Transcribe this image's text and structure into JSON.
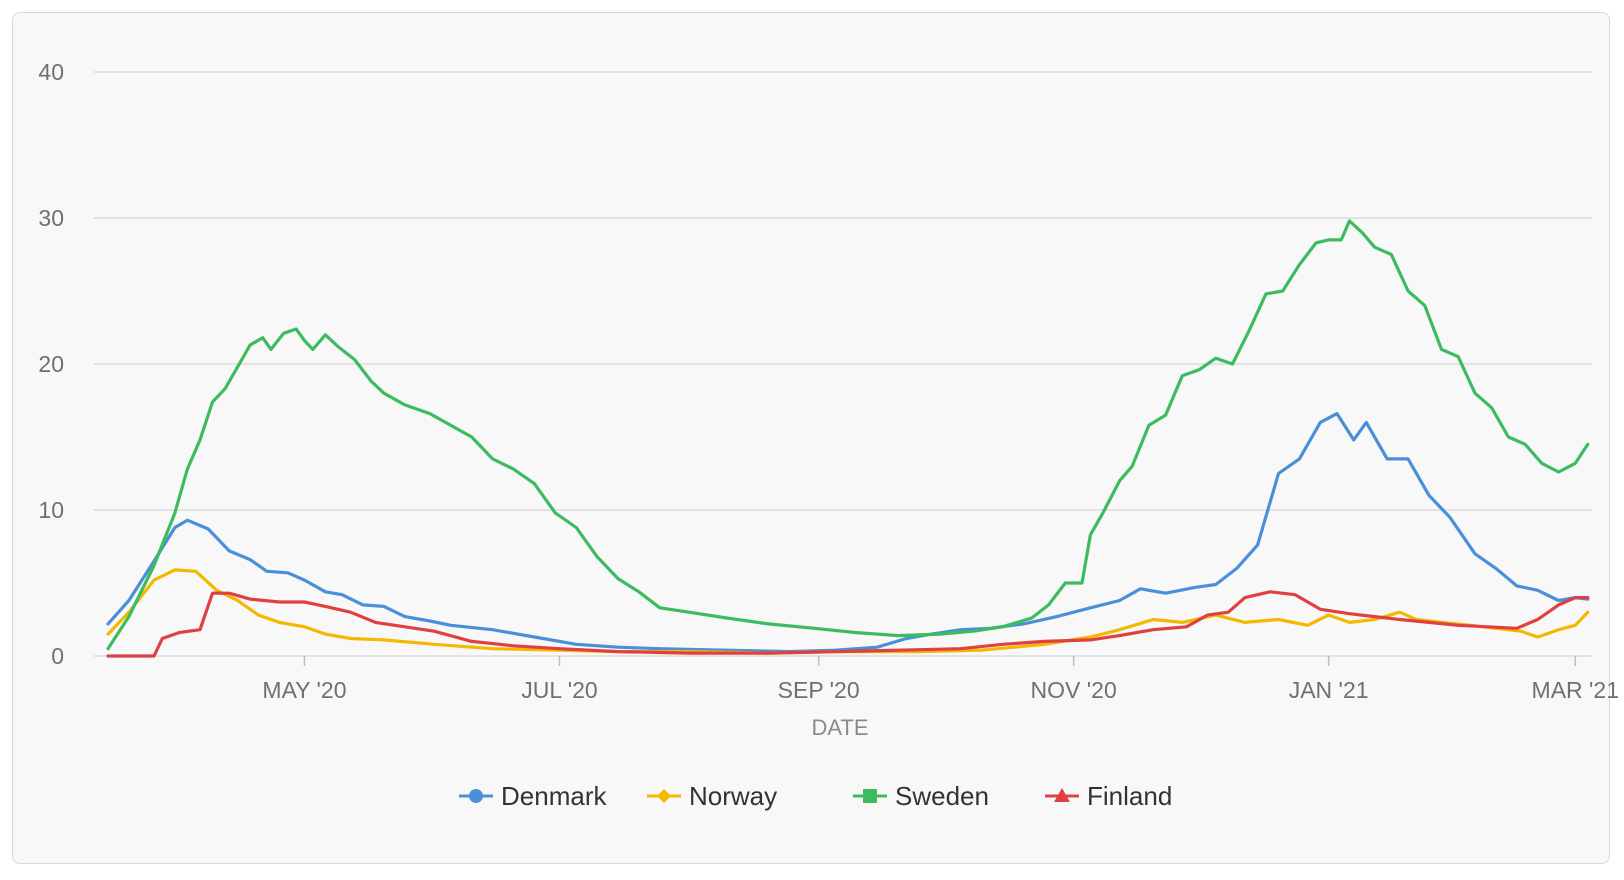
{
  "chart_data": {
    "type": "line",
    "title": "",
    "xlabel": "DATE",
    "ylabel": "",
    "ylim": [
      0,
      40
    ],
    "y_ticks": [
      0,
      10,
      20,
      30,
      40
    ],
    "x_range": [
      "2020-03-15",
      "2021-03-05"
    ],
    "x_ticks": [
      {
        "date": "2020-05-01",
        "label": "MAY '20"
      },
      {
        "date": "2020-07-01",
        "label": "JUL '20"
      },
      {
        "date": "2020-09-01",
        "label": "SEP '20"
      },
      {
        "date": "2020-11-01",
        "label": "NOV '20"
      },
      {
        "date": "2021-01-01",
        "label": "JAN '21"
      },
      {
        "date": "2021-03-01",
        "label": "MAR '21"
      }
    ],
    "grid": true,
    "legend_position": "bottom",
    "series": [
      {
        "name": "Denmark",
        "color": "#4a90d9",
        "marker": "circle",
        "points": [
          [
            "2020-03-15",
            2.2
          ],
          [
            "2020-03-20",
            3.8
          ],
          [
            "2020-03-26",
            6.5
          ],
          [
            "2020-03-31",
            8.8
          ],
          [
            "2020-04-03",
            9.3
          ],
          [
            "2020-04-08",
            8.7
          ],
          [
            "2020-04-13",
            7.2
          ],
          [
            "2020-04-18",
            6.6
          ],
          [
            "2020-04-22",
            5.8
          ],
          [
            "2020-04-27",
            5.7
          ],
          [
            "2020-05-01",
            5.2
          ],
          [
            "2020-05-06",
            4.4
          ],
          [
            "2020-05-10",
            4.2
          ],
          [
            "2020-05-15",
            3.5
          ],
          [
            "2020-05-20",
            3.4
          ],
          [
            "2020-05-25",
            2.7
          ],
          [
            "2020-05-31",
            2.4
          ],
          [
            "2020-06-05",
            2.1
          ],
          [
            "2020-06-15",
            1.8
          ],
          [
            "2020-06-25",
            1.3
          ],
          [
            "2020-07-05",
            0.8
          ],
          [
            "2020-07-15",
            0.6
          ],
          [
            "2020-07-25",
            0.5
          ],
          [
            "2020-08-10",
            0.4
          ],
          [
            "2020-08-25",
            0.3
          ],
          [
            "2020-09-05",
            0.4
          ],
          [
            "2020-09-15",
            0.6
          ],
          [
            "2020-09-22",
            1.2
          ],
          [
            "2020-09-28",
            1.5
          ],
          [
            "2020-10-05",
            1.8
          ],
          [
            "2020-10-12",
            1.9
          ],
          [
            "2020-10-20",
            2.2
          ],
          [
            "2020-10-28",
            2.7
          ],
          [
            "2020-11-05",
            3.3
          ],
          [
            "2020-11-12",
            3.8
          ],
          [
            "2020-11-17",
            4.6
          ],
          [
            "2020-11-23",
            4.3
          ],
          [
            "2020-11-30",
            4.7
          ],
          [
            "2020-12-05",
            4.9
          ],
          [
            "2020-12-10",
            6.0
          ],
          [
            "2020-12-15",
            7.6
          ],
          [
            "2020-12-20",
            12.5
          ],
          [
            "2020-12-25",
            13.5
          ],
          [
            "2020-12-30",
            16.0
          ],
          [
            "2021-01-03",
            16.6
          ],
          [
            "2021-01-07",
            14.8
          ],
          [
            "2021-01-10",
            16.0
          ],
          [
            "2021-01-15",
            13.5
          ],
          [
            "2021-01-20",
            13.5
          ],
          [
            "2021-01-25",
            11.0
          ],
          [
            "2021-01-30",
            9.5
          ],
          [
            "2021-02-05",
            7.0
          ],
          [
            "2021-02-10",
            6.0
          ],
          [
            "2021-02-15",
            4.8
          ],
          [
            "2021-02-20",
            4.5
          ],
          [
            "2021-02-25",
            3.8
          ],
          [
            "2021-03-01",
            4.0
          ],
          [
            "2021-03-04",
            3.9
          ]
        ]
      },
      {
        "name": "Norway",
        "color": "#f5b800",
        "marker": "diamond",
        "points": [
          [
            "2020-03-15",
            1.5
          ],
          [
            "2020-03-20",
            3.0
          ],
          [
            "2020-03-26",
            5.2
          ],
          [
            "2020-03-31",
            5.9
          ],
          [
            "2020-04-05",
            5.8
          ],
          [
            "2020-04-10",
            4.5
          ],
          [
            "2020-04-15",
            3.8
          ],
          [
            "2020-04-20",
            2.8
          ],
          [
            "2020-04-25",
            2.3
          ],
          [
            "2020-05-01",
            2.0
          ],
          [
            "2020-05-06",
            1.5
          ],
          [
            "2020-05-12",
            1.2
          ],
          [
            "2020-05-20",
            1.1
          ],
          [
            "2020-06-01",
            0.8
          ],
          [
            "2020-06-15",
            0.5
          ],
          [
            "2020-07-01",
            0.4
          ],
          [
            "2020-07-15",
            0.3
          ],
          [
            "2020-08-01",
            0.3
          ],
          [
            "2020-08-20",
            0.2
          ],
          [
            "2020-09-05",
            0.3
          ],
          [
            "2020-09-25",
            0.3
          ],
          [
            "2020-10-10",
            0.4
          ],
          [
            "2020-10-25",
            0.8
          ],
          [
            "2020-11-05",
            1.3
          ],
          [
            "2020-11-12",
            1.8
          ],
          [
            "2020-11-20",
            2.5
          ],
          [
            "2020-11-27",
            2.3
          ],
          [
            "2020-12-05",
            2.8
          ],
          [
            "2020-12-12",
            2.3
          ],
          [
            "2020-12-20",
            2.5
          ],
          [
            "2020-12-27",
            2.1
          ],
          [
            "2021-01-01",
            2.8
          ],
          [
            "2021-01-06",
            2.3
          ],
          [
            "2021-01-12",
            2.5
          ],
          [
            "2021-01-18",
            3.0
          ],
          [
            "2021-01-22",
            2.5
          ],
          [
            "2021-01-28",
            2.3
          ],
          [
            "2021-02-04",
            2.1
          ],
          [
            "2021-02-10",
            1.9
          ],
          [
            "2021-02-16",
            1.7
          ],
          [
            "2021-02-20",
            1.3
          ],
          [
            "2021-02-25",
            1.8
          ],
          [
            "2021-03-01",
            2.1
          ],
          [
            "2021-03-04",
            3.0
          ]
        ]
      },
      {
        "name": "Sweden",
        "color": "#3dbb5e",
        "marker": "square",
        "points": [
          [
            "2020-03-15",
            0.5
          ],
          [
            "2020-03-20",
            2.7
          ],
          [
            "2020-03-26",
            6.2
          ],
          [
            "2020-03-31",
            9.8
          ],
          [
            "2020-04-03",
            12.8
          ],
          [
            "2020-04-06",
            14.8
          ],
          [
            "2020-04-09",
            17.4
          ],
          [
            "2020-04-12",
            18.3
          ],
          [
            "2020-04-15",
            19.8
          ],
          [
            "2020-04-18",
            21.3
          ],
          [
            "2020-04-21",
            21.8
          ],
          [
            "2020-04-23",
            21.0
          ],
          [
            "2020-04-26",
            22.1
          ],
          [
            "2020-04-29",
            22.4
          ],
          [
            "2020-05-01",
            21.6
          ],
          [
            "2020-05-03",
            21.0
          ],
          [
            "2020-05-06",
            22.0
          ],
          [
            "2020-05-09",
            21.2
          ],
          [
            "2020-05-13",
            20.3
          ],
          [
            "2020-05-17",
            18.8
          ],
          [
            "2020-05-20",
            18.0
          ],
          [
            "2020-05-25",
            17.2
          ],
          [
            "2020-05-31",
            16.6
          ],
          [
            "2020-06-05",
            15.8
          ],
          [
            "2020-06-10",
            15.0
          ],
          [
            "2020-06-15",
            13.5
          ],
          [
            "2020-06-20",
            12.8
          ],
          [
            "2020-06-25",
            11.8
          ],
          [
            "2020-06-30",
            9.8
          ],
          [
            "2020-07-05",
            8.8
          ],
          [
            "2020-07-10",
            6.8
          ],
          [
            "2020-07-15",
            5.3
          ],
          [
            "2020-07-20",
            4.4
          ],
          [
            "2020-07-25",
            3.3
          ],
          [
            "2020-08-01",
            3.0
          ],
          [
            "2020-08-10",
            2.6
          ],
          [
            "2020-08-20",
            2.2
          ],
          [
            "2020-08-31",
            1.9
          ],
          [
            "2020-09-10",
            1.6
          ],
          [
            "2020-09-20",
            1.4
          ],
          [
            "2020-09-30",
            1.5
          ],
          [
            "2020-10-08",
            1.7
          ],
          [
            "2020-10-15",
            2.0
          ],
          [
            "2020-10-22",
            2.6
          ],
          [
            "2020-10-26",
            3.5
          ],
          [
            "2020-10-30",
            5.0
          ],
          [
            "2020-11-03",
            5.0
          ],
          [
            "2020-11-05",
            8.3
          ],
          [
            "2020-11-08",
            9.8
          ],
          [
            "2020-11-12",
            12.0
          ],
          [
            "2020-11-15",
            13.0
          ],
          [
            "2020-11-19",
            15.8
          ],
          [
            "2020-11-23",
            16.5
          ],
          [
            "2020-11-27",
            19.2
          ],
          [
            "2020-12-01",
            19.6
          ],
          [
            "2020-12-05",
            20.4
          ],
          [
            "2020-12-09",
            20.0
          ],
          [
            "2020-12-13",
            22.3
          ],
          [
            "2020-12-17",
            24.8
          ],
          [
            "2020-12-21",
            25.0
          ],
          [
            "2020-12-25",
            26.8
          ],
          [
            "2020-12-29",
            28.3
          ],
          [
            "2021-01-01",
            28.5
          ],
          [
            "2021-01-04",
            28.5
          ],
          [
            "2021-01-06",
            29.8
          ],
          [
            "2021-01-09",
            29.0
          ],
          [
            "2021-01-12",
            28.0
          ],
          [
            "2021-01-16",
            27.5
          ],
          [
            "2021-01-20",
            25.0
          ],
          [
            "2021-01-24",
            24.0
          ],
          [
            "2021-01-28",
            21.0
          ],
          [
            "2021-02-01",
            20.5
          ],
          [
            "2021-02-05",
            18.0
          ],
          [
            "2021-02-09",
            17.0
          ],
          [
            "2021-02-13",
            15.0
          ],
          [
            "2021-02-17",
            14.5
          ],
          [
            "2021-02-21",
            13.2
          ],
          [
            "2021-02-25",
            12.6
          ],
          [
            "2021-03-01",
            13.2
          ],
          [
            "2021-03-04",
            14.5
          ]
        ]
      },
      {
        "name": "Finland",
        "color": "#e04040",
        "marker": "triangle",
        "points": [
          [
            "2020-03-15",
            0.0
          ],
          [
            "2020-03-26",
            0.0
          ],
          [
            "2020-03-28",
            1.2
          ],
          [
            "2020-04-01",
            1.6
          ],
          [
            "2020-04-06",
            1.8
          ],
          [
            "2020-04-09",
            4.3
          ],
          [
            "2020-04-13",
            4.3
          ],
          [
            "2020-04-18",
            3.9
          ],
          [
            "2020-04-25",
            3.7
          ],
          [
            "2020-05-01",
            3.7
          ],
          [
            "2020-05-06",
            3.4
          ],
          [
            "2020-05-12",
            3.0
          ],
          [
            "2020-05-18",
            2.3
          ],
          [
            "2020-05-25",
            2.0
          ],
          [
            "2020-06-01",
            1.7
          ],
          [
            "2020-06-10",
            1.0
          ],
          [
            "2020-06-20",
            0.7
          ],
          [
            "2020-07-01",
            0.5
          ],
          [
            "2020-07-15",
            0.3
          ],
          [
            "2020-08-01",
            0.2
          ],
          [
            "2020-08-20",
            0.2
          ],
          [
            "2020-09-05",
            0.3
          ],
          [
            "2020-09-20",
            0.4
          ],
          [
            "2020-10-05",
            0.5
          ],
          [
            "2020-10-15",
            0.8
          ],
          [
            "2020-10-25",
            1.0
          ],
          [
            "2020-11-05",
            1.1
          ],
          [
            "2020-11-12",
            1.4
          ],
          [
            "2020-11-20",
            1.8
          ],
          [
            "2020-11-28",
            2.0
          ],
          [
            "2020-12-03",
            2.8
          ],
          [
            "2020-12-08",
            3.0
          ],
          [
            "2020-12-12",
            4.0
          ],
          [
            "2020-12-18",
            4.4
          ],
          [
            "2020-12-24",
            4.2
          ],
          [
            "2020-12-30",
            3.2
          ],
          [
            "2021-01-06",
            2.9
          ],
          [
            "2021-01-12",
            2.7
          ],
          [
            "2021-01-18",
            2.5
          ],
          [
            "2021-01-25",
            2.3
          ],
          [
            "2021-02-01",
            2.1
          ],
          [
            "2021-02-08",
            2.0
          ],
          [
            "2021-02-15",
            1.9
          ],
          [
            "2021-02-20",
            2.5
          ],
          [
            "2021-02-25",
            3.5
          ],
          [
            "2021-03-01",
            4.0
          ],
          [
            "2021-03-04",
            4.0
          ]
        ]
      }
    ]
  }
}
